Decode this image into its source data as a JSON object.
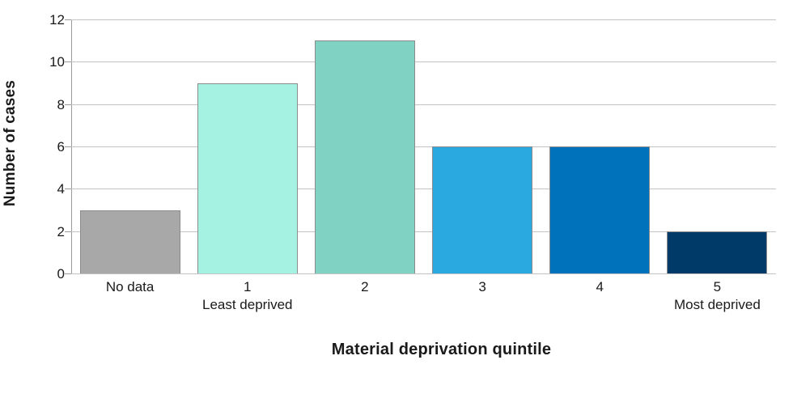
{
  "chart_data": {
    "type": "bar",
    "categories": [
      "No data",
      "1",
      "2",
      "3",
      "4",
      "5"
    ],
    "sublabels": [
      "",
      "Least deprived",
      "",
      "",
      "",
      "Most deprived"
    ],
    "values": [
      3,
      9,
      11,
      6,
      6,
      2
    ],
    "bar_colors": [
      "#a8a8a8",
      "#a5f1e2",
      "#80d2c2",
      "#2aa9e1",
      "#0071bb",
      "#003a68"
    ],
    "title": "",
    "xlabel": "Material deprivation quintile",
    "ylabel": "Number of cases",
    "ylim": [
      0,
      12
    ],
    "yticks": [
      0,
      2,
      4,
      6,
      8,
      10,
      12
    ],
    "grid": "horizontal",
    "legend": "none"
  },
  "colors": {
    "background": "#ffffff",
    "gridline": "#c3c3c3",
    "axis_line": "#9a9a9a",
    "bar_border": "#8c8c8c",
    "text": "#1a1a1a"
  }
}
